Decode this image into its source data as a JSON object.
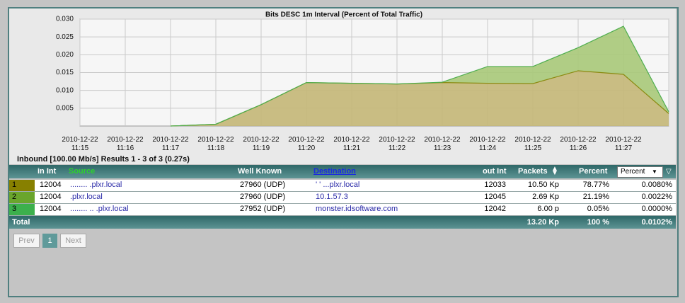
{
  "chart_data": {
    "type": "stacked-area",
    "title": "Bits DESC  1m Interval (Percent of Total Traffic)",
    "categories": [
      "2010-12-22 11:15",
      "2010-12-22 11:16",
      "2010-12-22 11:17",
      "2010-12-22 11:18",
      "2010-12-22 11:19",
      "2010-12-22 11:20",
      "2010-12-22 11:21",
      "2010-12-22 11:22",
      "2010-12-22 11:23",
      "2010-12-22 11:24",
      "2010-12-22 11:25",
      "2010-12-22 11:26",
      "2010-12-22 11:27",
      null
    ],
    "series": [
      {
        "color": "#8a8a10",
        "fill": "#c4b777",
        "values": [
          null,
          null,
          0,
          0.0005,
          0.006,
          0.0122,
          0.012,
          0.0118,
          0.0122,
          0.012,
          0.0119,
          0.0155,
          0.0145,
          0.0035
        ]
      },
      {
        "color": "#4fae4f",
        "fill": "#a9c979",
        "values": [
          null,
          null,
          0,
          0,
          0,
          0,
          0,
          0,
          0.0001,
          0.0047,
          0.0048,
          0.0065,
          0.0135,
          0.0005
        ]
      }
    ],
    "ylim": [
      0,
      0.03
    ],
    "yticks": [
      0.005,
      {
        "value": 0.01,
        "label": "0.010"
      },
      0.015,
      {
        "value": 0.02,
        "label": "0.020"
      },
      0.025,
      {
        "value": 0.03,
        "label": "0.030"
      }
    ],
    "grid": true
  },
  "info": "Inbound [100.00 Mb/s] Results 1 - 3 of 3 (0.27s)",
  "table": {
    "headers": [
      "in Int",
      "Source",
      "Well Known",
      "Destination",
      "out Int",
      "Packets",
      "Percent"
    ],
    "selector": "Percent",
    "rows": [
      {
        "color": "#878000",
        "cells": [
          "1",
          "12004",
          "........  .plxr.local",
          "27960 (UDP)",
          "'  '    ...plxr.local",
          "12033",
          "10.50 Kp",
          "78.77%",
          "0.0080%"
        ]
      },
      {
        "color": "#6aa52c",
        "cells": [
          "2",
          "12004",
          ".plxr.local",
          "27960 (UDP)",
          "10.1.57.3",
          "12045",
          "2.69 Kp",
          "21.19%",
          "0.0022%"
        ]
      },
      {
        "color": "#3cb04c",
        "cells": [
          "3",
          "12004",
          "........ ..  .plxr.local",
          "27952 (UDP)",
          "monster.idsoftware.com",
          "12042",
          "6.00 p",
          "0.05%",
          "0.0000%"
        ]
      }
    ],
    "total": [
      "Total",
      "13.20 Kp",
      "100 %",
      "0.0102%"
    ]
  },
  "pagination": [
    "Prev",
    "1",
    "Next"
  ]
}
